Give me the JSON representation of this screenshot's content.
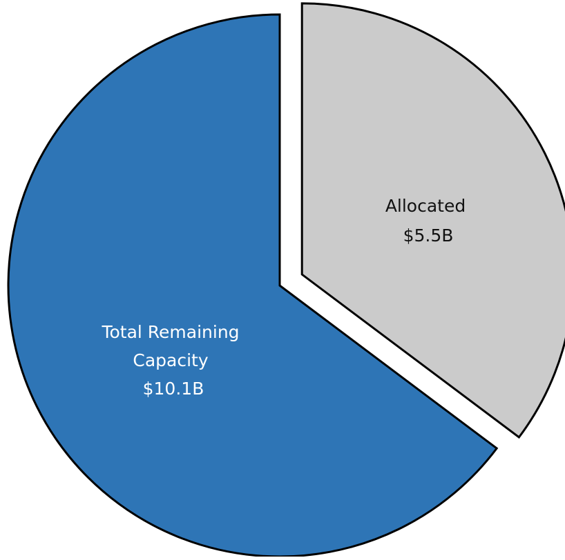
{
  "chart_data": {
    "type": "pie",
    "slices": [
      {
        "name": "Allocated",
        "value_label": "$5.5B",
        "value": 5.5,
        "color": "#cbcbcb",
        "label_color": "#111111",
        "exploded": true
      },
      {
        "name": "Total Remaining Capacity",
        "value_label": "$10.1B",
        "value": 10.1,
        "color": "#2e75b6",
        "label_color": "#ffffff",
        "exploded": false
      }
    ],
    "outline_color": "#000000",
    "start": "12 o'clock",
    "direction": "clockwise"
  },
  "labels": {
    "allocated": {
      "lines": [
        "Allocated",
        "$5.5B"
      ]
    },
    "remaining": {
      "lines": [
        "Total Remaining",
        "Capacity",
        "$10.1B"
      ]
    }
  }
}
